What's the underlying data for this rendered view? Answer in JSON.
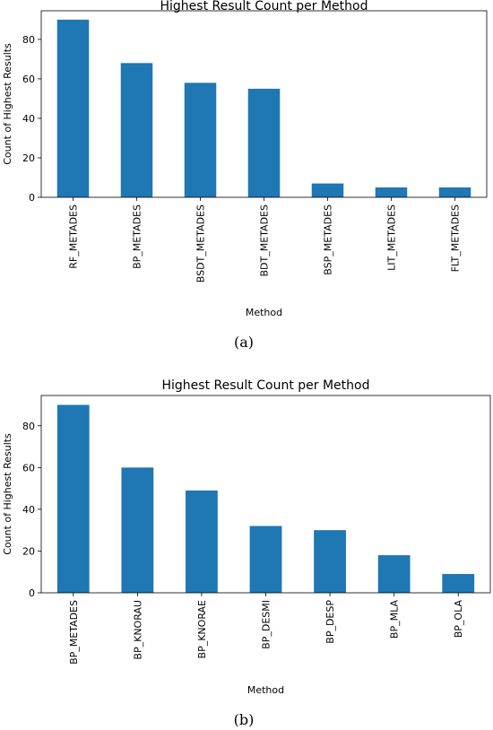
{
  "bar_color": "#1f77b4",
  "chart_data": [
    {
      "type": "bar",
      "title": "Highest Result Count per Method",
      "xlabel": "Method",
      "ylabel": "Count of Highest Results",
      "categories": [
        "RF_METADES",
        "BP_METADES",
        "BSDT_METADES",
        "BDT_METADES",
        "BSP_METADES",
        "LIT_METADES",
        "FLT_METADES"
      ],
      "values": [
        90,
        68,
        58,
        55,
        7,
        5,
        5
      ],
      "yticks": [
        0,
        20,
        40,
        60,
        80
      ],
      "ylim": [
        0,
        94.5
      ],
      "grid": false,
      "caption": "(a)"
    },
    {
      "type": "bar",
      "title": "Highest Result Count per Method",
      "xlabel": "Method",
      "ylabel": "Count of Highest Results",
      "categories": [
        "BP_METADES",
        "BP_KNORAU",
        "BP_KNORAE",
        "BP_DESMI",
        "BP_DESP",
        "BP_MLA",
        "BP_OLA"
      ],
      "values": [
        90,
        60,
        49,
        32,
        30,
        18,
        9
      ],
      "yticks": [
        0,
        20,
        40,
        60,
        80
      ],
      "ylim": [
        0,
        94.5
      ],
      "grid": false,
      "caption": "(b)"
    }
  ]
}
